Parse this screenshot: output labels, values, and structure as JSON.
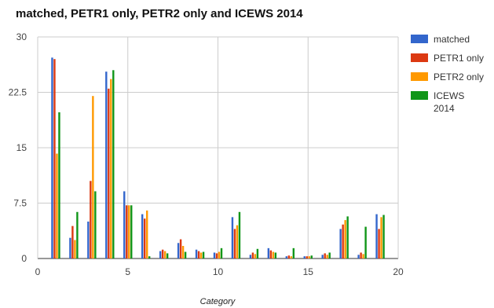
{
  "chart_data": {
    "type": "bar",
    "title": "matched, PETR1 only, PETR2 only and ICEWS 2014",
    "xlabel": "Category",
    "ylabel": "",
    "xlim": [
      0,
      20
    ],
    "ylim": [
      0,
      30
    ],
    "xticks": [
      "0",
      "5",
      "10",
      "15",
      "20"
    ],
    "yticks": [
      "0",
      "7.5",
      "15",
      "22.5",
      "30"
    ],
    "grid": true,
    "legend_position": "right",
    "x": [
      1,
      2,
      3,
      4,
      5,
      6,
      7,
      8,
      9,
      10,
      11,
      12,
      13,
      14,
      15,
      16,
      17,
      18,
      19
    ],
    "series": [
      {
        "name": "matched",
        "color": "#3366cc",
        "values": [
          27.2,
          2.8,
          5.0,
          25.3,
          9.1,
          6.0,
          1.0,
          2.1,
          1.2,
          0.8,
          5.6,
          0.5,
          1.4,
          0.3,
          0.3,
          0.5,
          4.0,
          0.5,
          6.0
        ]
      },
      {
        "name": "PETR1 only",
        "color": "#dc3912",
        "values": [
          27.0,
          4.4,
          10.5,
          23.0,
          7.2,
          5.4,
          1.2,
          2.6,
          1.0,
          0.7,
          4.0,
          0.8,
          1.1,
          0.4,
          0.3,
          0.7,
          4.6,
          0.8,
          4.0
        ]
      },
      {
        "name": "PETR2 only",
        "color": "#ff9900",
        "values": [
          14.2,
          2.5,
          22.0,
          24.3,
          7.2,
          6.5,
          1.0,
          1.7,
          0.8,
          0.9,
          4.5,
          0.6,
          0.9,
          0.3,
          0.3,
          0.5,
          5.2,
          0.6,
          5.6
        ]
      },
      {
        "name": "ICEWS\n2014",
        "color": "#109618",
        "values": [
          19.8,
          6.3,
          9.1,
          25.5,
          7.2,
          0.3,
          0.7,
          0.9,
          0.9,
          1.4,
          6.3,
          1.3,
          0.8,
          1.4,
          0.4,
          0.8,
          5.7,
          4.3,
          5.9
        ]
      }
    ]
  }
}
